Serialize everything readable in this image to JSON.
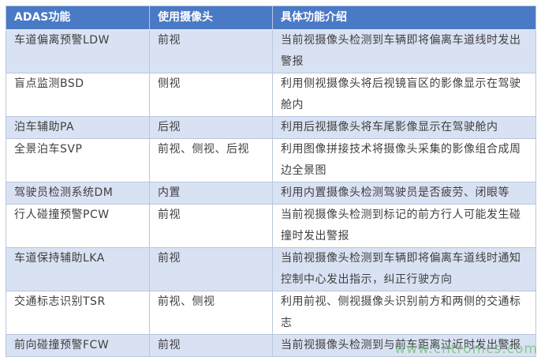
{
  "page": {
    "watermark": "www.cntronics.com"
  },
  "colors": {
    "header_bg": "#4a79c5",
    "header_text": "#ffffff",
    "band_row_bg": "#d9e2f3",
    "plain_row_bg": "#ffffff",
    "border": "#b9c6e0",
    "body_text": "#3f3f3f",
    "watermark_green": "#6cbb6c"
  },
  "table": {
    "headers": [
      "ADAS功能",
      "使用摄像头",
      "具体功能介绍"
    ],
    "rows": [
      {
        "function": "车道偏离预警LDW",
        "camera": "前视",
        "description": "当前视摄像头检测到车辆即将偏离车道线时发出警报"
      },
      {
        "function": "盲点监测BSD",
        "camera": "侧视",
        "description": "利用侧视摄像头将后视镜盲区的影像显示在驾驶舱内"
      },
      {
        "function": "泊车辅助PA",
        "camera": "后视",
        "description": "利用后视摄像头将车尾影像显示在驾驶舱内"
      },
      {
        "function": "全景泊车SVP",
        "camera": "前视、侧视、后视",
        "description": "利用图像拼接技术将摄像头采集的影像组合成周边全景图"
      },
      {
        "function": "驾驶员检测系统DM",
        "camera": "内置",
        "description": "利用内置摄像头检测驾驶员是否疲劳、闭眼等"
      },
      {
        "function": "行人碰撞预警PCW",
        "camera": "前视",
        "description": "当前视摄像头检测到标记的前方行人可能发生碰撞时发出警报"
      },
      {
        "function": "车道保持辅助LKA",
        "camera": "前视",
        "description": "当前视摄像头检测到车辆即将偏离车道线时通知控制中心发出指示，纠正行驶方向"
      },
      {
        "function": "交通标志识别TSR",
        "camera": "前视、侧视",
        "description": "利用前视、侧视摄像头识别前方和两侧的交通标志"
      },
      {
        "function": "前向碰撞预警FCW",
        "camera": "前视",
        "description": "当前视摄像头检测到与前车距离过近时发出警报"
      }
    ]
  }
}
